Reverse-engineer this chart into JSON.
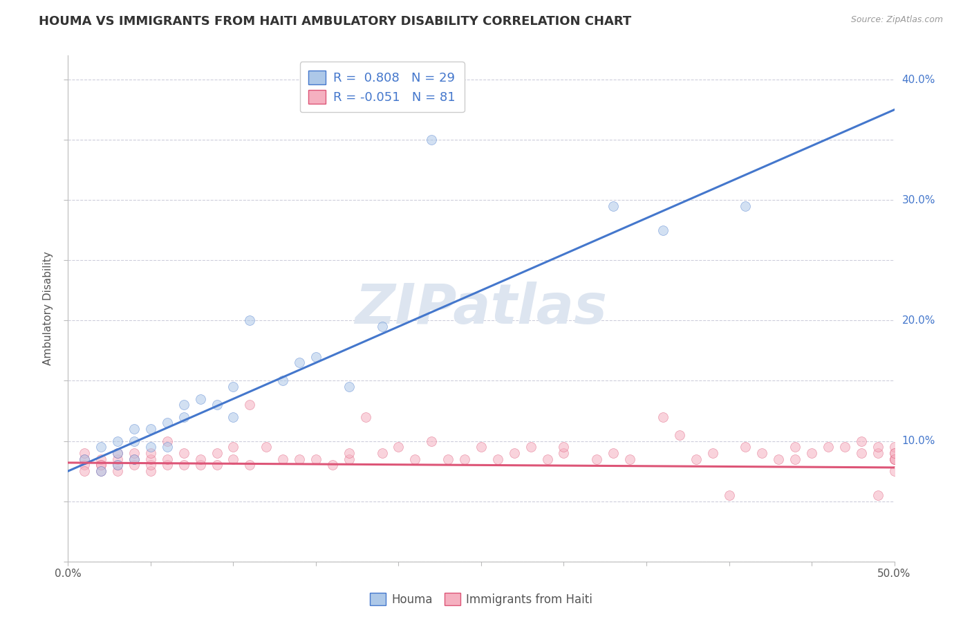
{
  "title": "HOUMA VS IMMIGRANTS FROM HAITI AMBULATORY DISABILITY CORRELATION CHART",
  "source": "Source: ZipAtlas.com",
  "ylabel": "Ambulatory Disability",
  "xmin": 0.0,
  "xmax": 0.5,
  "ymin": 0.0,
  "ymax": 0.42,
  "houma_R": 0.808,
  "houma_N": 29,
  "haiti_R": -0.051,
  "haiti_N": 81,
  "houma_color": "#adc8e8",
  "houma_line_color": "#4477cc",
  "haiti_color": "#f5b0c0",
  "haiti_line_color": "#dd5577",
  "houma_scatter_x": [
    0.01,
    0.02,
    0.02,
    0.03,
    0.03,
    0.03,
    0.04,
    0.04,
    0.04,
    0.05,
    0.05,
    0.06,
    0.06,
    0.07,
    0.07,
    0.08,
    0.09,
    0.1,
    0.1,
    0.11,
    0.13,
    0.14,
    0.15,
    0.17,
    0.19,
    0.22,
    0.33,
    0.36,
    0.41
  ],
  "houma_scatter_y": [
    0.085,
    0.075,
    0.095,
    0.08,
    0.09,
    0.1,
    0.085,
    0.1,
    0.11,
    0.095,
    0.11,
    0.095,
    0.115,
    0.12,
    0.13,
    0.135,
    0.13,
    0.12,
    0.145,
    0.2,
    0.15,
    0.165,
    0.17,
    0.145,
    0.195,
    0.35,
    0.295,
    0.275,
    0.295
  ],
  "haiti_scatter_x": [
    0.01,
    0.01,
    0.01,
    0.01,
    0.02,
    0.02,
    0.02,
    0.02,
    0.03,
    0.03,
    0.03,
    0.03,
    0.04,
    0.04,
    0.04,
    0.05,
    0.05,
    0.05,
    0.05,
    0.06,
    0.06,
    0.06,
    0.07,
    0.07,
    0.08,
    0.08,
    0.09,
    0.09,
    0.1,
    0.1,
    0.11,
    0.11,
    0.12,
    0.13,
    0.14,
    0.15,
    0.16,
    0.17,
    0.17,
    0.18,
    0.19,
    0.2,
    0.21,
    0.22,
    0.23,
    0.24,
    0.25,
    0.26,
    0.27,
    0.28,
    0.29,
    0.3,
    0.3,
    0.32,
    0.33,
    0.34,
    0.36,
    0.37,
    0.38,
    0.39,
    0.4,
    0.41,
    0.42,
    0.43,
    0.44,
    0.44,
    0.45,
    0.46,
    0.47,
    0.48,
    0.48,
    0.49,
    0.49,
    0.49,
    0.5,
    0.5,
    0.5,
    0.5,
    0.5,
    0.5,
    0.5
  ],
  "haiti_scatter_y": [
    0.08,
    0.085,
    0.09,
    0.075,
    0.08,
    0.085,
    0.075,
    0.08,
    0.075,
    0.08,
    0.085,
    0.09,
    0.08,
    0.085,
    0.09,
    0.075,
    0.08,
    0.085,
    0.09,
    0.08,
    0.085,
    0.1,
    0.08,
    0.09,
    0.08,
    0.085,
    0.08,
    0.09,
    0.085,
    0.095,
    0.13,
    0.08,
    0.095,
    0.085,
    0.085,
    0.085,
    0.08,
    0.085,
    0.09,
    0.12,
    0.09,
    0.095,
    0.085,
    0.1,
    0.085,
    0.085,
    0.095,
    0.085,
    0.09,
    0.095,
    0.085,
    0.09,
    0.095,
    0.085,
    0.09,
    0.085,
    0.12,
    0.105,
    0.085,
    0.09,
    0.055,
    0.095,
    0.09,
    0.085,
    0.085,
    0.095,
    0.09,
    0.095,
    0.095,
    0.09,
    0.1,
    0.055,
    0.09,
    0.095,
    0.085,
    0.09,
    0.075,
    0.085,
    0.095,
    0.085,
    0.09
  ],
  "background_color": "#ffffff",
  "grid_color": "#c8c8d8",
  "watermark_text": "ZIPatlas",
  "watermark_color": "#dde5f0",
  "title_fontsize": 13,
  "axis_label_fontsize": 11,
  "tick_fontsize": 11,
  "dot_size": 100,
  "dot_alpha": 0.55,
  "line_width": 2.2,
  "houma_trendline_x": [
    0.0,
    0.5
  ],
  "houma_trend_y": [
    0.075,
    0.375
  ],
  "haiti_trendline_x": [
    0.0,
    0.5
  ],
  "haiti_trend_y": [
    0.082,
    0.078
  ],
  "x_ticks": [
    0.0,
    0.05,
    0.1,
    0.15,
    0.2,
    0.25,
    0.3,
    0.35,
    0.4,
    0.45,
    0.5
  ],
  "y_ticks": [
    0.0,
    0.05,
    0.1,
    0.15,
    0.2,
    0.25,
    0.3,
    0.35,
    0.4
  ]
}
